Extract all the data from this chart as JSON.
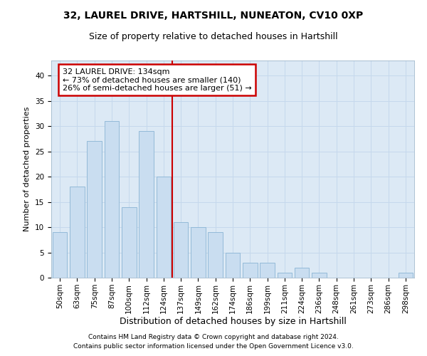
{
  "title1": "32, LAUREL DRIVE, HARTSHILL, NUNEATON, CV10 0XP",
  "title2": "Size of property relative to detached houses in Hartshill",
  "xlabel": "Distribution of detached houses by size in Hartshill",
  "ylabel": "Number of detached properties",
  "categories": [
    "50sqm",
    "63sqm",
    "75sqm",
    "87sqm",
    "100sqm",
    "112sqm",
    "124sqm",
    "137sqm",
    "149sqm",
    "162sqm",
    "174sqm",
    "186sqm",
    "199sqm",
    "211sqm",
    "224sqm",
    "236sqm",
    "248sqm",
    "261sqm",
    "273sqm",
    "286sqm",
    "298sqm"
  ],
  "values": [
    9,
    18,
    27,
    31,
    14,
    29,
    20,
    11,
    10,
    9,
    5,
    3,
    3,
    1,
    2,
    1,
    0,
    0,
    0,
    0,
    1
  ],
  "bar_color": "#c9ddf0",
  "bar_edge_color": "#8ab4d4",
  "annotation_text": "32 LAUREL DRIVE: 134sqm\n← 73% of detached houses are smaller (140)\n26% of semi-detached houses are larger (51) →",
  "annotation_box_color": "#ffffff",
  "annotation_box_edge_color": "#cc0000",
  "property_line_color": "#cc0000",
  "ylim": [
    0,
    43
  ],
  "yticks": [
    0,
    5,
    10,
    15,
    20,
    25,
    30,
    35,
    40
  ],
  "grid_color": "#c5d8ec",
  "background_color": "#dce9f5",
  "footer1": "Contains HM Land Registry data © Crown copyright and database right 2024.",
  "footer2": "Contains public sector information licensed under the Open Government Licence v3.0.",
  "title1_fontsize": 10,
  "title2_fontsize": 9,
  "xlabel_fontsize": 9,
  "ylabel_fontsize": 8,
  "tick_fontsize": 7.5,
  "annotation_fontsize": 8,
  "footer_fontsize": 6.5
}
